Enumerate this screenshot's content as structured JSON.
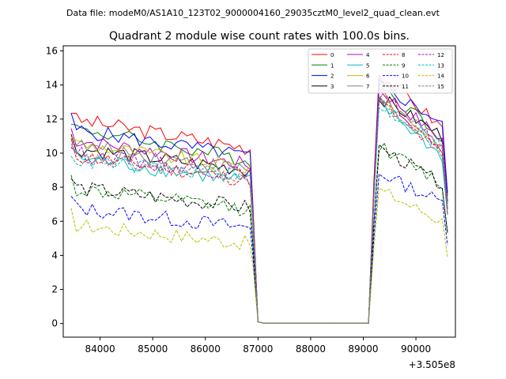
{
  "chart_data": {
    "type": "line",
    "suptitle": "Data file: modeM0/AS1A10_123T02_9000004160_29035cztM0_level2_quad_clean.evt",
    "title": "Quadrant 2 module wise count rates with 100.0s bins.",
    "xlabel": "",
    "ylabel": "",
    "x_offset_label": "+3.505e8",
    "xlim": [
      83300,
      90750
    ],
    "ylim": [
      -0.8,
      16.3
    ],
    "xticks": [
      84000,
      85000,
      86000,
      87000,
      88000,
      89000,
      90000
    ],
    "yticks": [
      0,
      2,
      4,
      6,
      8,
      10,
      12,
      14,
      16
    ],
    "grid": false,
    "legend_placement": "top-right",
    "legend_columns": 4,
    "segments": {
      "seg1": {
        "start": 83450,
        "end": 86850,
        "step": 100
      },
      "gap": {
        "start": 87100,
        "end": 89100,
        "step": 100
      },
      "seg2": {
        "start": 89200,
        "end": 90550,
        "step": 100
      }
    },
    "series": [
      {
        "name": "0",
        "color": "#ff0000",
        "dash": "solid",
        "level1": 12.0,
        "drop1": 10.3,
        "peak2": 15.0,
        "end2": 11.5
      },
      {
        "name": "1",
        "color": "#008000",
        "dash": "solid",
        "level1": 11.5,
        "drop1": 9.6,
        "peak2": 14.3,
        "end2": 11.0
      },
      {
        "name": "2",
        "color": "#0000ff",
        "dash": "solid",
        "level1": 11.4,
        "drop1": 9.8,
        "peak2": 14.2,
        "end2": 11.8
      },
      {
        "name": "3",
        "color": "#000000",
        "dash": "solid",
        "level1": 10.3,
        "drop1": 9.0,
        "peak2": 13.5,
        "end2": 11.0
      },
      {
        "name": "4",
        "color": "#bf00bf",
        "dash": "solid",
        "level1": 10.8,
        "drop1": 9.3,
        "peak2": 14.0,
        "end2": 10.8
      },
      {
        "name": "5",
        "color": "#00bfbf",
        "dash": "solid",
        "level1": 9.8,
        "drop1": 8.3,
        "peak2": 13.2,
        "end2": 9.8
      },
      {
        "name": "6",
        "color": "#bfbf00",
        "dash": "solid",
        "level1": 10.6,
        "drop1": 9.1,
        "peak2": 13.7,
        "end2": 10.4
      },
      {
        "name": "7",
        "color": "#808080",
        "dash": "solid",
        "level1": 10.5,
        "drop1": 9.0,
        "peak2": 13.6,
        "end2": 10.3
      },
      {
        "name": "8",
        "color": "#ff0000",
        "dash": "dashed",
        "level1": 9.9,
        "drop1": 8.4,
        "peak2": 13.3,
        "end2": 9.9
      },
      {
        "name": "9",
        "color": "#008000",
        "dash": "dashed",
        "level1": 7.9,
        "drop1": 6.7,
        "peak2": 10.6,
        "end2": 8.2
      },
      {
        "name": "10",
        "color": "#0000ff",
        "dash": "dashed",
        "level1": 6.8,
        "drop1": 5.6,
        "peak2": 9.0,
        "end2": 7.1
      },
      {
        "name": "11",
        "color": "#000000",
        "dash": "dashed",
        "level1": 8.0,
        "drop1": 6.8,
        "peak2": 10.5,
        "end2": 8.2
      },
      {
        "name": "12",
        "color": "#bf00bf",
        "dash": "dashed",
        "level1": 10.0,
        "drop1": 8.7,
        "peak2": 13.8,
        "end2": 10.3
      },
      {
        "name": "13",
        "color": "#00bfbf",
        "dash": "dashed",
        "level1": 9.6,
        "drop1": 8.6,
        "peak2": 13.0,
        "end2": 10.5
      },
      {
        "name": "14",
        "color": "#bfbf00",
        "dash": "dashed",
        "level1": 5.8,
        "drop1": 4.7,
        "peak2": 8.0,
        "end2": 6.0
      },
      {
        "name": "15",
        "color": "#808080",
        "dash": "dashed",
        "level1": 9.7,
        "drop1": 8.6,
        "peak2": 13.2,
        "end2": 10.0
      }
    ]
  }
}
